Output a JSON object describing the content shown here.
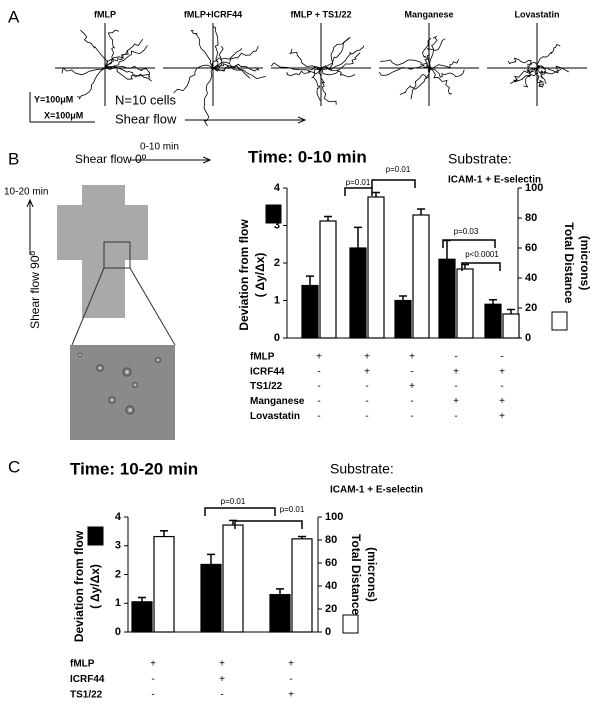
{
  "panel_a": {
    "label": "A",
    "titles": [
      "fMLP",
      "fMLP+ICRF44",
      "fMLP + TS1/22",
      "Manganese",
      "Lovastatin"
    ],
    "y_scale": "Y=100μM",
    "x_scale": "X=100μM",
    "n": "N=10 cells",
    "flow": "Shear flow"
  },
  "panel_b": {
    "label": "B",
    "flow_0": "Shear flow 0º",
    "time_0": "0-10 min",
    "time_90": "10-20 min",
    "flow_90": "Shear flow 90º"
  },
  "panel_c": {
    "label": "C"
  },
  "chart_data": [
    {
      "type": "bar",
      "title": "Time: 0-10 min",
      "substrate_label": "Substrate:",
      "substrate": "ICAM-1 + E-selectin",
      "ylabel": [
        "Deviation from flow",
        "( Δy/Δx)"
      ],
      "y2label": [
        "Total Distance",
        "(microns)"
      ],
      "ylim": [
        0,
        4
      ],
      "yticks": [
        0,
        1,
        2,
        3,
        4
      ],
      "y2lim": [
        0,
        100
      ],
      "y2ticks": [
        0,
        20,
        40,
        60,
        80,
        100
      ],
      "series": [
        {
          "color": "#000000",
          "values": [
            1.4,
            2.4,
            1.0,
            2.1,
            0.9
          ],
          "errors": [
            0.25,
            0.55,
            0.12,
            0.5,
            0.12
          ]
        },
        {
          "color": "#ffffff",
          "axis": "y2",
          "values": [
            78,
            94,
            82,
            46,
            16
          ],
          "errors": [
            3,
            3,
            4,
            3,
            3
          ]
        }
      ],
      "conditions": [
        {
          "name": "fMLP",
          "signs": [
            "+",
            "+",
            "+",
            "-",
            "-"
          ]
        },
        {
          "name": "ICRF44",
          "signs": [
            "-",
            "+",
            "-",
            "+",
            "+"
          ]
        },
        {
          "name": "TS1/22",
          "signs": [
            "-",
            "-",
            "+",
            "-",
            "-"
          ]
        },
        {
          "name": "Manganese",
          "signs": [
            "-",
            "-",
            "-",
            "+",
            "+"
          ]
        },
        {
          "name": "Lovastatin",
          "signs": [
            "-",
            "-",
            "-",
            "-",
            "+"
          ]
        }
      ],
      "annotations": [
        "p=0.01",
        "p=0.01",
        "p=0.03",
        "p<0.0001"
      ]
    },
    {
      "type": "bar",
      "title": "Time: 10-20 min",
      "substrate_label": "Substrate:",
      "substrate": "ICAM-1 + E-selectin",
      "ylabel": [
        "Deviation from flow",
        "( Δy/Δx)"
      ],
      "y2label": [
        "Total Distance",
        "(microns)"
      ],
      "ylim": [
        0,
        4
      ],
      "yticks": [
        0,
        1,
        2,
        3,
        4
      ],
      "y2lim": [
        0,
        100
      ],
      "y2ticks": [
        0,
        20,
        40,
        60,
        80,
        100
      ],
      "series": [
        {
          "color": "#000000",
          "values": [
            1.05,
            2.35,
            1.3
          ],
          "errors": [
            0.15,
            0.35,
            0.2
          ]
        },
        {
          "color": "#ffffff",
          "axis": "y2",
          "values": [
            83,
            93,
            81
          ],
          "errors": [
            5,
            4,
            2
          ]
        }
      ],
      "conditions": [
        {
          "name": "fMLP",
          "signs": [
            "+",
            "+",
            "+"
          ]
        },
        {
          "name": "ICRF44",
          "signs": [
            "-",
            "+",
            "-"
          ]
        },
        {
          "name": "TS1/22",
          "signs": [
            "-",
            "-",
            "+"
          ]
        }
      ],
      "annotations": [
        "p=0.01",
        "p=0.01"
      ]
    }
  ]
}
